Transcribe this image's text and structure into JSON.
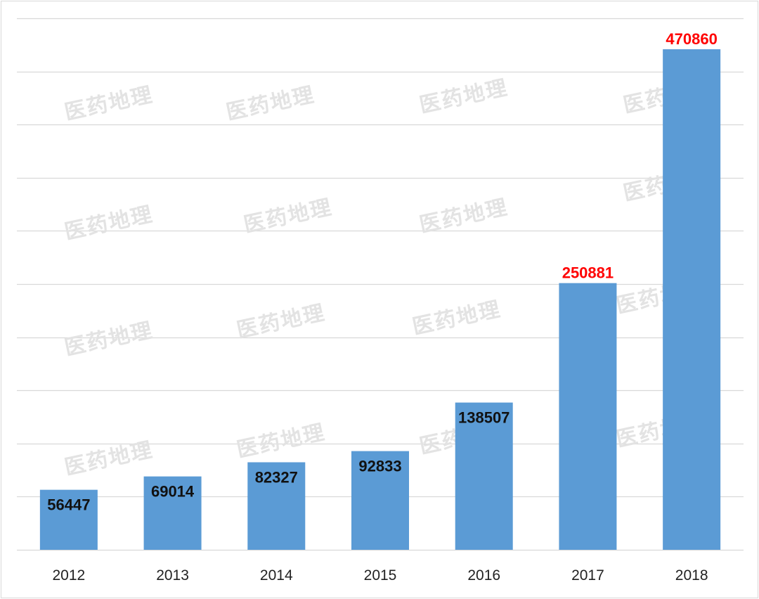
{
  "watermark": "医药地理",
  "colors": {
    "bar": "#5b9bd5",
    "grid": "#d9d9d9",
    "label_normal": "#111111",
    "label_highlight": "#ff0000"
  },
  "chart_data": {
    "type": "bar",
    "categories": [
      "2012",
      "2013",
      "2014",
      "2015",
      "2016",
      "2017",
      "2018"
    ],
    "values": [
      56447,
      69014,
      82327,
      92833,
      138507,
      250881,
      470860
    ],
    "data_labels": [
      "56447",
      "69014",
      "82327",
      "92833",
      "138507",
      "250881",
      "470860"
    ],
    "highlighted_categories": [
      "2017",
      "2018"
    ],
    "ylim": [
      0,
      500000
    ],
    "gridlines": true,
    "y_axis_labels_shown": false,
    "legend": "none"
  }
}
